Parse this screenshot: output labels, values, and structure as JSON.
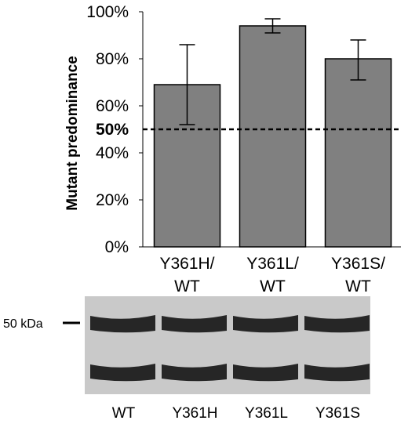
{
  "colors": {
    "bar_fill": "#808080",
    "bar_stroke": "#000000",
    "blot_background": "#c9c9c9",
    "blot_band": "#262626"
  },
  "chart_data": {
    "type": "bar",
    "categories": [
      [
        "Y361H/",
        "WT"
      ],
      [
        "Y361L/",
        "WT"
      ],
      [
        "Y361S/",
        "WT"
      ]
    ],
    "values": [
      69,
      94,
      80
    ],
    "error_low": [
      52,
      91,
      71
    ],
    "error_high": [
      86,
      97,
      88
    ],
    "ylabel": "Mutant predominance",
    "ylim": [
      0,
      100
    ],
    "yticks": [
      {
        "value": 0,
        "label": "0%"
      },
      {
        "value": 20,
        "label": "20%"
      },
      {
        "value": 40,
        "label": "40%"
      },
      {
        "value": 60,
        "label": "60%"
      },
      {
        "value": 80,
        "label": "80%"
      },
      {
        "value": 100,
        "label": "100%"
      }
    ],
    "reference_line": {
      "value": 50,
      "label": "50%",
      "style": "dashed"
    },
    "grid": false,
    "legend": "none"
  },
  "western_blot": {
    "marker_label": "50 kDa",
    "lanes": [
      "WT",
      "Y361H",
      "Y361L",
      "Y361S"
    ],
    "band_count": 2
  }
}
